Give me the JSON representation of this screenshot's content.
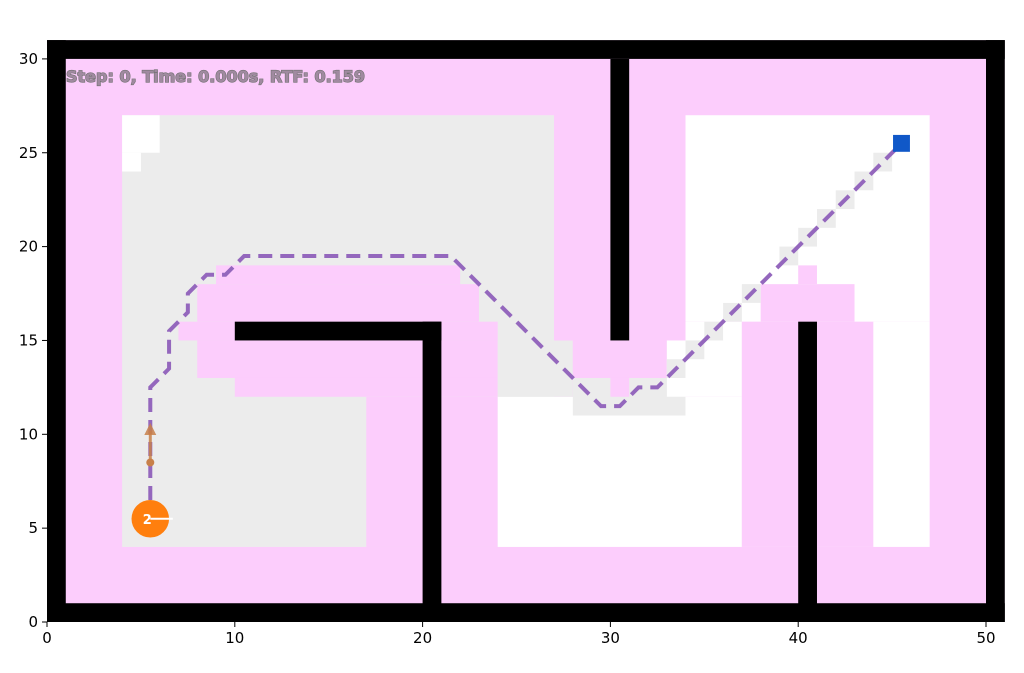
{
  "chart_data": {
    "type": "scatter",
    "title": "",
    "status_text": "Step: 0, Time: 0.000s, RTF: 0.159",
    "xlim": [
      0,
      51
    ],
    "ylim": [
      0,
      31
    ],
    "xticks": [
      0,
      10,
      20,
      30,
      40,
      50
    ],
    "yticks": [
      0,
      5,
      10,
      15,
      20,
      25,
      30
    ],
    "xtick_labels": [
      "0",
      "10",
      "20",
      "30",
      "40",
      "50"
    ],
    "ytick_labels": [
      "0",
      "5",
      "10",
      "15",
      "20",
      "25",
      "30"
    ],
    "grid": false,
    "robot": {
      "id": "2",
      "x": 5.5,
      "y": 5.5,
      "radius": 1.0,
      "heading_deg": 0,
      "color": "#ff7f0e"
    },
    "goal": {
      "x": 45.5,
      "y": 25.5,
      "color": "#1058c8"
    },
    "velocity_arrow": {
      "from": [
        5.5,
        8.5
      ],
      "to": [
        5.5,
        10.6
      ],
      "color": "#c8804a"
    },
    "planned_path": {
      "color": "#9467bd",
      "style": "dashed",
      "points": [
        [
          5.5,
          6.5
        ],
        [
          5.5,
          12.5
        ],
        [
          6.5,
          13.5
        ],
        [
          6.5,
          15.5
        ],
        [
          7.5,
          16.5
        ],
        [
          7.5,
          17.5
        ],
        [
          8.5,
          18.5
        ],
        [
          9.5,
          18.5
        ],
        [
          10.5,
          19.5
        ],
        [
          21.5,
          19.5
        ],
        [
          23.5,
          17.5
        ],
        [
          29.5,
          11.5
        ],
        [
          30.5,
          11.5
        ],
        [
          31.5,
          12.5
        ],
        [
          32.5,
          12.5
        ],
        [
          45.5,
          25.5
        ]
      ]
    },
    "colors": {
      "obstacle": "#000000",
      "inflation": "#fccdfc",
      "explored": "#ececec",
      "free": "#ffffff"
    }
  }
}
